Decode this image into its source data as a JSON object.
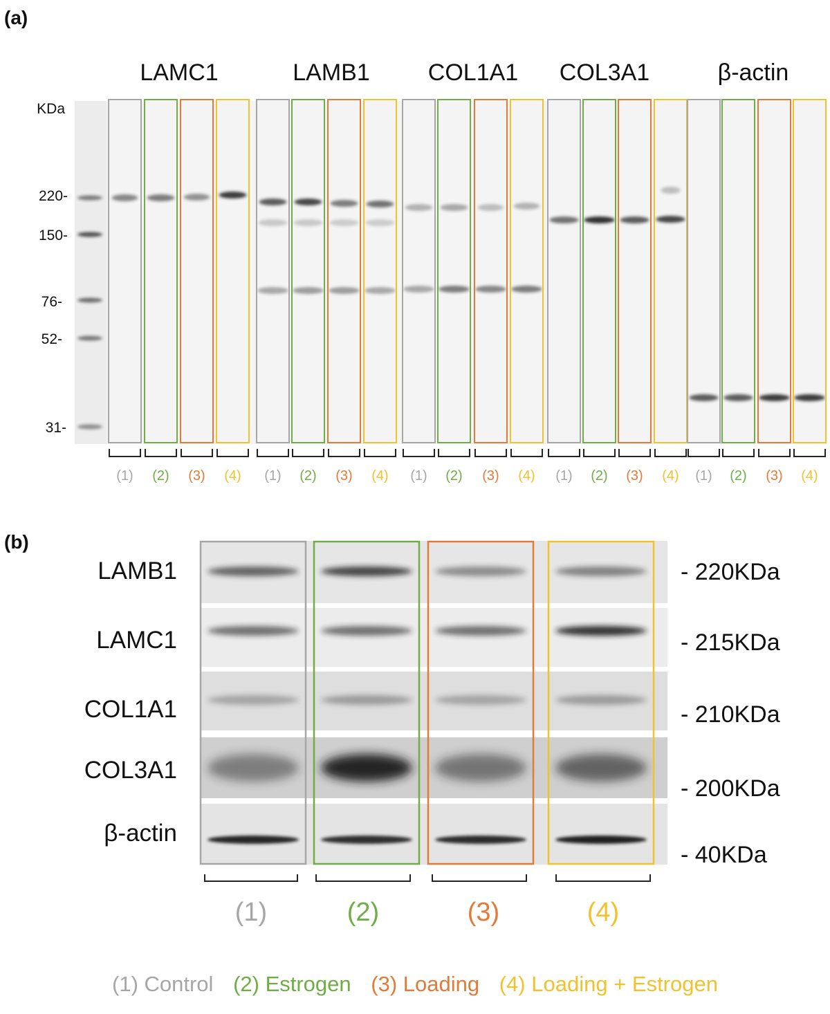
{
  "panel_a": {
    "label": "(a)",
    "kda_header": "KDa",
    "markers": [
      "220-",
      "150-",
      "76-",
      "52-",
      "31-"
    ],
    "proteins": [
      "LAMC1",
      "LAMB1",
      "COL1A1",
      "COL3A1",
      "β-actin"
    ],
    "lane_labels": [
      "(1)",
      "(2)",
      "(3)",
      "(4)"
    ]
  },
  "panel_b": {
    "label": "(b)",
    "rows": [
      {
        "name": "LAMB1",
        "mw": "- 220KDa"
      },
      {
        "name": "LAMC1",
        "mw": "- 215KDa"
      },
      {
        "name": "COL1A1",
        "mw": "- 210KDa"
      },
      {
        "name": "COL3A1",
        "mw": "- 200KDa"
      },
      {
        "name": "β-actin",
        "mw": "- 40KDa"
      }
    ],
    "group_labels": [
      "(1)",
      "(2)",
      "(3)",
      "(4)"
    ]
  },
  "legend": {
    "control": "(1) Control",
    "estrogen": "(2) Estrogen",
    "loading": "(3) Loading",
    "loading_estrogen": "(4) Loading + Estrogen"
  },
  "colors": {
    "control": "#a6a6a6",
    "estrogen": "#70ad47",
    "loading": "#e07b39",
    "loading_estrogen": "#f2c12e"
  },
  "band_intensity": {
    "panel_b": {
      "LAMB1": [
        0.65,
        0.8,
        0.45,
        0.5
      ],
      "LAMC1": [
        0.6,
        0.6,
        0.6,
        0.9
      ],
      "COL1A1": [
        0.3,
        0.35,
        0.3,
        0.35
      ],
      "COL3A1": [
        0.45,
        0.95,
        0.5,
        0.6
      ],
      "β-actin": [
        0.95,
        0.9,
        0.92,
        0.98
      ]
    }
  }
}
